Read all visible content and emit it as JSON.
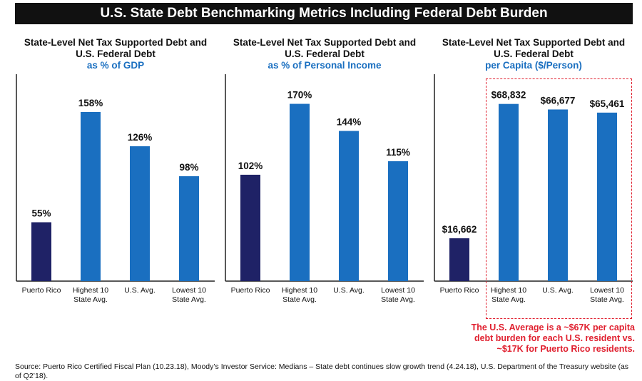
{
  "header": {
    "title": "U.S. State Debt Benchmarking Metrics Including Federal Debt Burden"
  },
  "colors": {
    "puerto_rico": "#1f2266",
    "states": "#1a6fc0",
    "note": "#e0202f",
    "subtitle": "#1a6fc0"
  },
  "chart_data": [
    {
      "type": "bar",
      "title": "State-Level Net Tax Supported Debt and U.S. Federal Debt",
      "subtitle": "as % of GDP",
      "categories": [
        "Puerto Rico",
        "Highest 10 State Avg.",
        "U.S. Avg.",
        "Lowest 10 State Avg."
      ],
      "category_lines": [
        [
          "Puerto Rico"
        ],
        [
          "Highest 10",
          "State Avg."
        ],
        [
          "U.S. Avg."
        ],
        [
          "Lowest 10",
          "State Avg."
        ]
      ],
      "values": [
        55,
        158,
        126,
        98
      ],
      "value_labels": [
        "55%",
        "158%",
        "126%",
        "98%"
      ],
      "ylim": [
        0,
        190
      ],
      "xlabel": "",
      "ylabel": ""
    },
    {
      "type": "bar",
      "title": "State-Level Net Tax Supported Debt and U.S. Federal Debt",
      "subtitle": "as % of Personal Income",
      "categories": [
        "Puerto Rico",
        "Highest 10 State Avg.",
        "U.S. Avg.",
        "Lowest 10 State Avg."
      ],
      "category_lines": [
        [
          "Puerto Rico"
        ],
        [
          "Highest 10",
          "State Avg."
        ],
        [
          "U.S. Avg."
        ],
        [
          "Lowest 10",
          "State Avg."
        ]
      ],
      "values": [
        102,
        170,
        144,
        115
      ],
      "value_labels": [
        "102%",
        "170%",
        "144%",
        "115%"
      ],
      "ylim": [
        0,
        195
      ],
      "xlabel": "",
      "ylabel": ""
    },
    {
      "type": "bar",
      "title": "State-Level Net Tax Supported Debt and U.S. Federal Debt",
      "subtitle": "per Capita ($/Person)",
      "categories": [
        "Puerto Rico",
        "Highest 10 State Avg.",
        "U.S. Avg.",
        "Lowest 10 State Avg."
      ],
      "category_lines": [
        [
          "Puerto Rico"
        ],
        [
          "Highest 10",
          "State Avg."
        ],
        [
          "U.S. Avg."
        ],
        [
          "Lowest 10",
          "State Avg."
        ]
      ],
      "values": [
        16662,
        68832,
        66677,
        65461
      ],
      "value_labels": [
        "$16,662",
        "$68,832",
        "$66,677",
        "$65,461"
      ],
      "ylim": [
        0,
        79000
      ],
      "xlabel": "",
      "ylabel": ""
    }
  ],
  "note": "The U.S. Average is a ~$67K per capita debt burden for each U.S. resident vs. ~$17K for Puerto Rico residents.",
  "source": "Source: Puerto Rico Certified Fiscal Plan (10.23.18), Moody’s Investor Service: Medians – State debt continues slow growth trend (4.24.18), U.S. Department of the Treasury website (as of Q2’18)."
}
